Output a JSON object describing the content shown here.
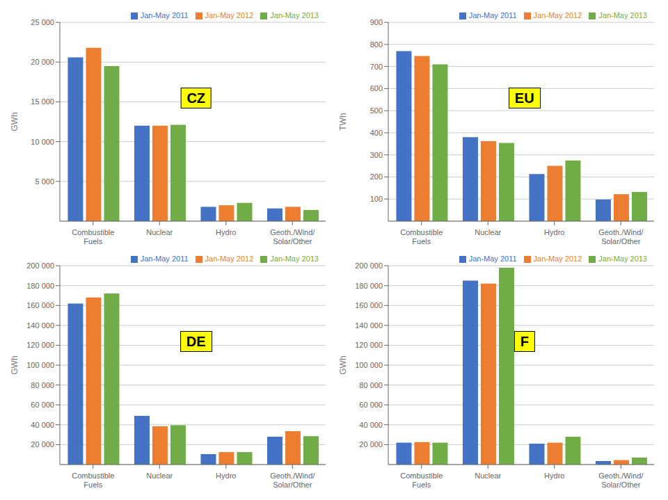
{
  "chart_data": [
    {
      "type": "bar",
      "annotation": "CZ",
      "ylabel": "GWh",
      "ylim": [
        0,
        25000
      ],
      "yticks": [
        {
          "value": 5000,
          "label": "5 000"
        },
        {
          "value": 10000,
          "label": "10 000"
        },
        {
          "value": 15000,
          "label": "15 000"
        },
        {
          "value": 20000,
          "label": "20 000"
        },
        {
          "value": 25000,
          "label": "25 000"
        }
      ],
      "categories": [
        "Combustible\nFuels",
        "Nuclear",
        "Hydro",
        "Geoth./Wind/\nSolar/Other"
      ],
      "series": [
        {
          "name": "Jan-May 2011",
          "color": "#4472C4",
          "values": [
            20600,
            12000,
            1800,
            1600
          ]
        },
        {
          "name": "Jan-May 2012",
          "color": "#ED7D31",
          "values": [
            21800,
            12000,
            2000,
            1800
          ]
        },
        {
          "name": "Jan-May 2013",
          "color": "#70AD47",
          "values": [
            19500,
            12100,
            2300,
            1400
          ]
        }
      ],
      "grid": true,
      "legend": "upper right"
    },
    {
      "type": "bar",
      "annotation": "EU",
      "ylabel": "TWh",
      "ylim": [
        0,
        900
      ],
      "yticks": [
        100,
        200,
        300,
        400,
        500,
        600,
        700,
        800,
        900
      ],
      "categories": [
        "Combustible\nFuels",
        "Nuclear",
        "Hydro",
        "Geoth./Wind/\nSolar/Other"
      ],
      "series": [
        {
          "name": "Jan-May 2011",
          "color": "#4472C4",
          "values": [
            770,
            380,
            213,
            98
          ]
        },
        {
          "name": "Jan-May 2012",
          "color": "#ED7D31",
          "values": [
            748,
            362,
            250,
            122
          ]
        },
        {
          "name": "Jan-May 2013",
          "color": "#70AD47",
          "values": [
            710,
            354,
            275,
            132
          ]
        }
      ],
      "grid": true,
      "legend": "upper right"
    },
    {
      "type": "bar",
      "annotation": "DE",
      "ylabel": "GWh",
      "ylim": [
        0,
        200000
      ],
      "yticks": [
        {
          "value": 20000,
          "label": "20 000"
        },
        {
          "value": 40000,
          "label": "40 000"
        },
        {
          "value": 60000,
          "label": "60 000"
        },
        {
          "value": 80000,
          "label": "80 000"
        },
        {
          "value": 100000,
          "label": "100 000"
        },
        {
          "value": 120000,
          "label": "120 000"
        },
        {
          "value": 140000,
          "label": "140 000"
        },
        {
          "value": 160000,
          "label": "160 000"
        },
        {
          "value": 180000,
          "label": "180 000"
        },
        {
          "value": 200000,
          "label": "200 000"
        }
      ],
      "categories": [
        "Combustible\nFuels",
        "Nuclear",
        "Hydro",
        "Geoth./Wind/\nSolar/Other"
      ],
      "series": [
        {
          "name": "Jan-May 2011",
          "color": "#4472C4",
          "values": [
            162000,
            49000,
            10500,
            28000
          ]
        },
        {
          "name": "Jan-May 2012",
          "color": "#ED7D31",
          "values": [
            168000,
            38500,
            12500,
            33500
          ]
        },
        {
          "name": "Jan-May 2013",
          "color": "#70AD47",
          "values": [
            172000,
            39500,
            12500,
            28500
          ]
        }
      ],
      "grid": true,
      "legend": "upper right"
    },
    {
      "type": "bar",
      "annotation": "F",
      "ylabel": "GWh",
      "ylim": [
        0,
        200000
      ],
      "yticks": [
        {
          "value": 20000,
          "label": "20 000"
        },
        {
          "value": 40000,
          "label": "40 000"
        },
        {
          "value": 60000,
          "label": "60 000"
        },
        {
          "value": 80000,
          "label": "80 000"
        },
        {
          "value": 100000,
          "label": "100 000"
        },
        {
          "value": 120000,
          "label": "120 000"
        },
        {
          "value": 140000,
          "label": "140 000"
        },
        {
          "value": 160000,
          "label": "160 000"
        },
        {
          "value": 180000,
          "label": "180 000"
        },
        {
          "value": 200000,
          "label": "200 000"
        }
      ],
      "categories": [
        "Combustible\nFuels",
        "Nuclear",
        "Hydro",
        "Geoth./Wind/\nSolar/Other"
      ],
      "series": [
        {
          "name": "Jan-May 2011",
          "color": "#4472C4",
          "values": [
            22000,
            185000,
            21000,
            3500
          ]
        },
        {
          "name": "Jan-May 2012",
          "color": "#ED7D31",
          "values": [
            22500,
            182000,
            22000,
            4500
          ]
        },
        {
          "name": "Jan-May 2013",
          "color": "#70AD47",
          "values": [
            22000,
            198000,
            28000,
            7000
          ]
        }
      ],
      "grid": true,
      "legend": "upper right"
    }
  ]
}
